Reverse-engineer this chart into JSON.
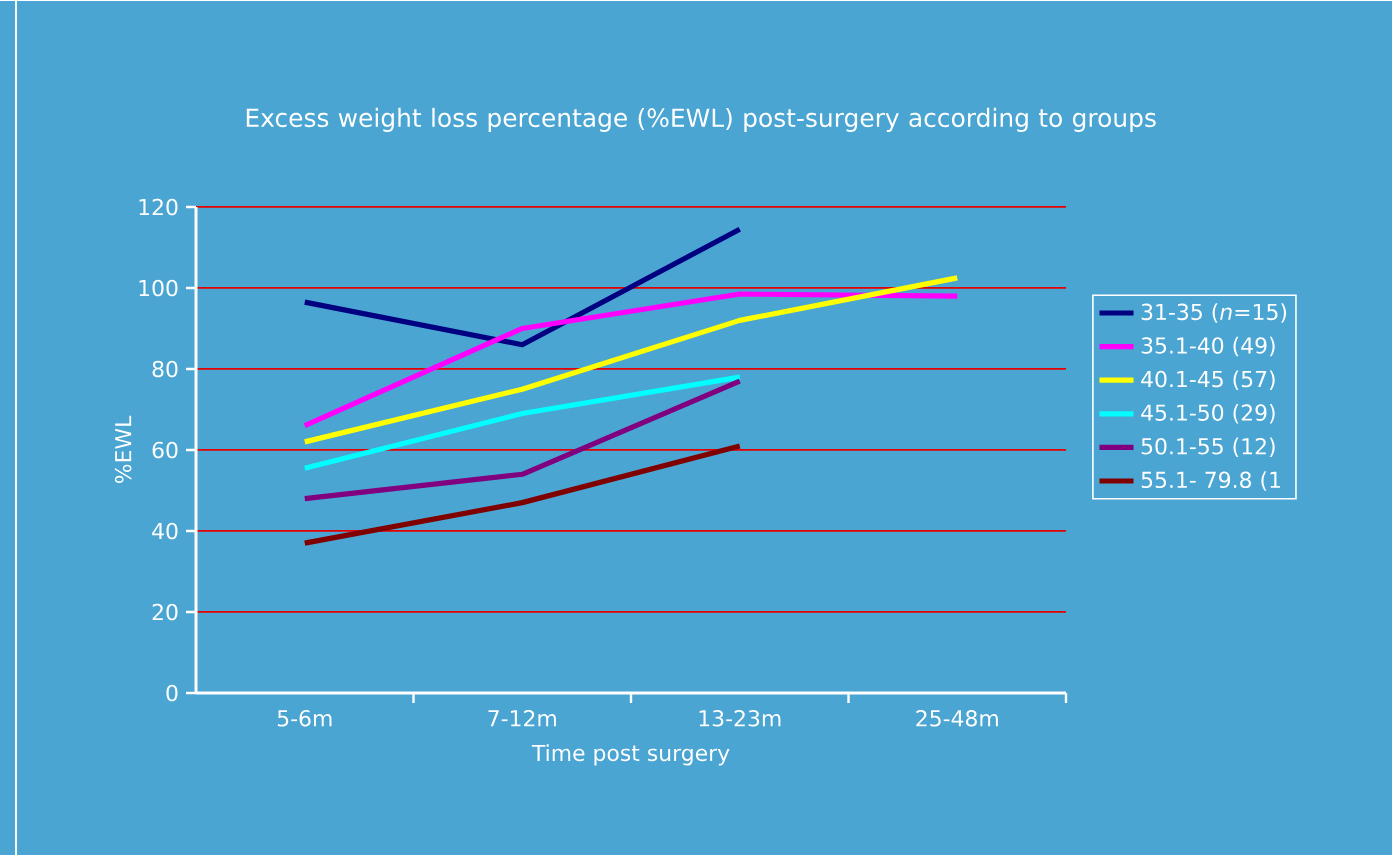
{
  "chart_data": {
    "type": "line",
    "title": "Excess weight loss percentage (%EWL) post-surgery according to groups",
    "xlabel": "Time post surgery",
    "ylabel": "%EWL",
    "categories": [
      "5-6m",
      "7-12m",
      "13-23m",
      "25-48m"
    ],
    "series": [
      {
        "name": "31-35 (*n*=15)",
        "color": "#000080",
        "values": [
          96.5,
          86,
          114.5,
          null
        ]
      },
      {
        "name": "35.1-40 (49)",
        "color": "#ff00ff",
        "values": [
          66,
          90,
          98.5,
          98
        ]
      },
      {
        "name": "40.1-45 (57)",
        "color": "#ffff00",
        "values": [
          62,
          75,
          92,
          102.5
        ]
      },
      {
        "name": "45.1-50 (29)",
        "color": "#00ffff",
        "values": [
          55.5,
          69,
          78,
          null
        ]
      },
      {
        "name": "50.1-55 (12)",
        "color": "#800080",
        "values": [
          48,
          54,
          77,
          null
        ]
      },
      {
        "name": "55.1- 79.8 (1",
        "color": "#800000",
        "values": [
          37,
          47,
          61,
          null
        ]
      }
    ],
    "ylim": [
      0,
      120
    ],
    "yticks": [
      0,
      20,
      40,
      60,
      80,
      100,
      120
    ],
    "grid": "y",
    "legend": "right",
    "marker": "none",
    "line_style": "solid"
  }
}
